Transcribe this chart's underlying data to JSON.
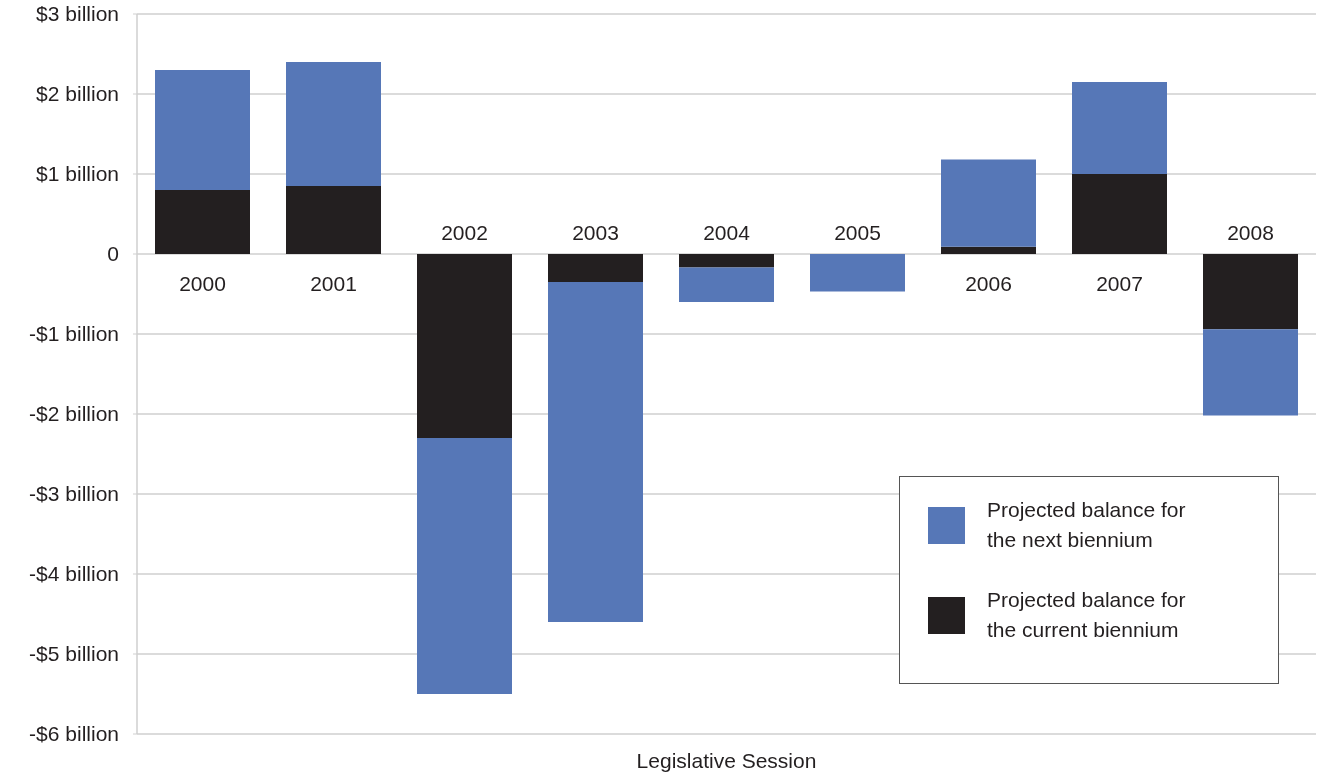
{
  "chart_data": {
    "type": "bar",
    "stacked": true,
    "xlabel": "Legislative Session",
    "categories": [
      "2000",
      "2001",
      "2002",
      "2003",
      "2004",
      "2005",
      "2006",
      "2007",
      "2008"
    ],
    "series": [
      {
        "name": "Projected balance for the current biennium",
        "color": "#231f20",
        "values": [
          0.8,
          0.85,
          -2.3,
          -0.35,
          -0.17,
          0,
          0.09,
          1.0,
          -0.94
        ]
      },
      {
        "name": "Projected balance for the next biennium",
        "color": "#5677b7",
        "values": [
          1.5,
          1.55,
          -3.2,
          -4.25,
          -0.43,
          -0.47,
          1.09,
          1.15,
          -1.08
        ]
      }
    ],
    "ylim": [
      -6,
      3
    ],
    "yticks": [
      {
        "value": -6,
        "label": "-$6 billion"
      },
      {
        "value": -5,
        "label": "-$5 billion"
      },
      {
        "value": -4,
        "label": "-$4 billion"
      },
      {
        "value": -3,
        "label": "-$3 billion"
      },
      {
        "value": -2,
        "label": "-$2 billion"
      },
      {
        "value": -1,
        "label": "-$1 billion"
      },
      0,
      {
        "value": 1,
        "label": "$1 billion"
      },
      {
        "value": 2,
        "label": "$2 billion"
      },
      {
        "value": 3,
        "label": "$3 billion"
      }
    ],
    "grid": "y",
    "legend": "bottom right"
  }
}
